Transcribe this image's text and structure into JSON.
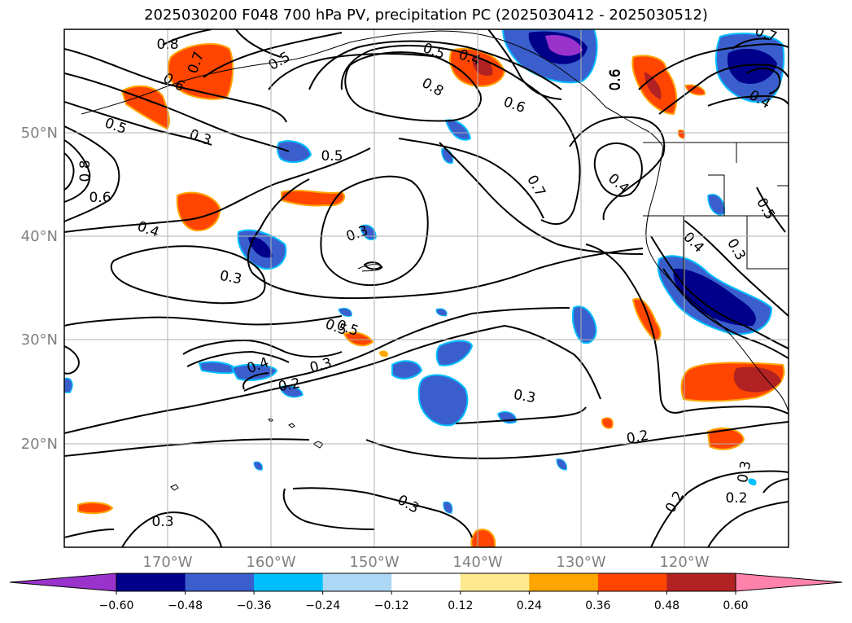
{
  "title": "2025030200 F048 700 hPa PV, precipitation PC (2025030412 - 2025030512)",
  "lat_labels": [
    "50°N",
    "40°N",
    "30°N",
    "20°N"
  ],
  "lon_labels": [
    "170°W",
    "160°W",
    "150°W",
    "140°W",
    "130°W",
    "120°W"
  ],
  "colorbar": {
    "ticks": [
      "−0.60",
      "−0.48",
      "−0.36",
      "−0.24",
      "−0.12",
      "0.12",
      "0.24",
      "0.36",
      "0.48",
      "0.60"
    ],
    "colors": [
      "#9933cc",
      "#00008b",
      "#3a5fcd",
      "#00bfff",
      "#add8f5",
      "#ffffff",
      "#ffe98f",
      "#ffa500",
      "#ff4500",
      "#b22222",
      "#ff82ab"
    ]
  },
  "contour_labels": [
    "0.8",
    "0.7",
    "0.6",
    "0.5",
    "0.5",
    "0.4",
    "0.8",
    "0.6",
    "0.6",
    "0.3",
    "0.5",
    "0.5",
    "0.4",
    "0.4",
    "0.5",
    "0.7",
    "0.8",
    "0.6",
    "0.4",
    "0.3",
    "0.3",
    "0.3",
    "0.4",
    "0.5",
    "0.4",
    "0.3",
    "0.2",
    "0.3",
    "0.2",
    "0.3",
    "0.2",
    "0.2",
    "0.3",
    "0.3",
    "0.5",
    "0.7",
    "0.6"
  ],
  "colors": {
    "frame": "#000000",
    "grid": "#b0b0b0",
    "axis_text": "#808080",
    "contour": "#000000"
  }
}
